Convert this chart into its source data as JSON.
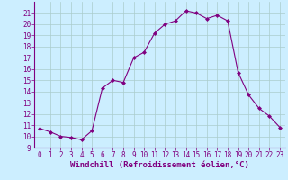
{
  "x": [
    0,
    1,
    2,
    3,
    4,
    5,
    6,
    7,
    8,
    9,
    10,
    11,
    12,
    13,
    14,
    15,
    16,
    17,
    18,
    19,
    20,
    21,
    22,
    23
  ],
  "y": [
    10.7,
    10.4,
    10.0,
    9.9,
    9.7,
    10.5,
    14.3,
    15.0,
    14.8,
    17.0,
    17.5,
    19.2,
    20.0,
    20.3,
    21.2,
    21.0,
    20.5,
    20.8,
    20.3,
    15.7,
    13.7,
    12.5,
    11.8,
    10.8
  ],
  "line_color": "#800080",
  "marker": "D",
  "marker_size": 2.0,
  "background_color": "#cceeff",
  "grid_color": "#aacccc",
  "xlabel": "Windchill (Refroidissement éolien,°C)",
  "xlabel_fontsize": 6.5,
  "ylim": [
    9,
    22
  ],
  "xlim": [
    -0.5,
    23.5
  ],
  "yticks": [
    9,
    10,
    11,
    12,
    13,
    14,
    15,
    16,
    17,
    18,
    19,
    20,
    21
  ],
  "xticks": [
    0,
    1,
    2,
    3,
    4,
    5,
    6,
    7,
    8,
    9,
    10,
    11,
    12,
    13,
    14,
    15,
    16,
    17,
    18,
    19,
    20,
    21,
    22,
    23
  ],
  "tick_fontsize": 5.5,
  "spine_color": "#800080"
}
